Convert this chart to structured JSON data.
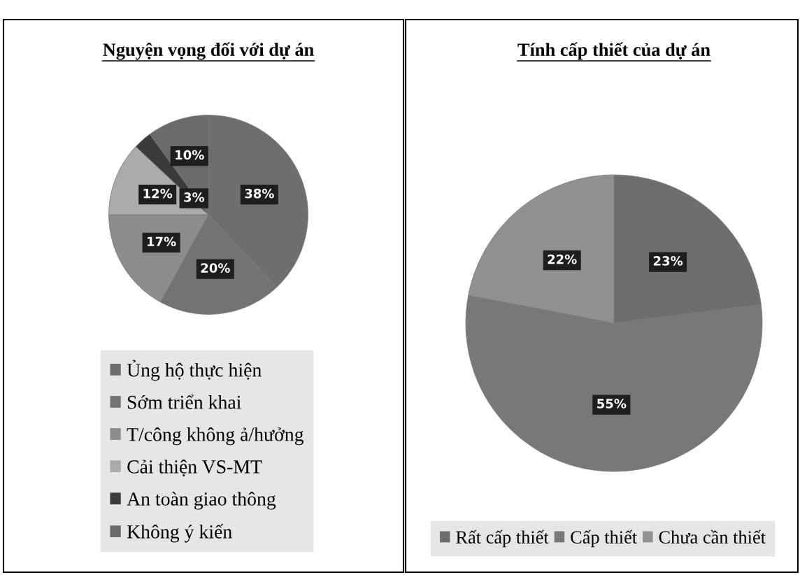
{
  "chart_data": [
    {
      "type": "pie",
      "title": "Nguyện vọng đối với dự án",
      "categories": [
        "Ủng hộ thực hiện",
        "Sớm triển khai",
        "T/công không ả/hưởng",
        "Cải thiện VS-MT",
        "An toàn giao thông",
        "Không ý kiến"
      ],
      "values": [
        38,
        20,
        17,
        12,
        3,
        10
      ],
      "colors": [
        "#6e6e6e",
        "#737373",
        "#8c8c8c",
        "#ababab",
        "#3a3a3a",
        "#6a6a6a"
      ],
      "value_labels": [
        "38%",
        "20%",
        "17%",
        "12%",
        "3%",
        "10%"
      ],
      "legend": "bottom"
    },
    {
      "type": "pie",
      "title": "Tính cấp thiết của dự án",
      "categories": [
        "Rất cấp thiết",
        "Cấp thiết",
        "Chưa cần thiết"
      ],
      "values": [
        23,
        55,
        22
      ],
      "colors": [
        "#6e6e6e",
        "#787878",
        "#909090"
      ],
      "value_labels": [
        "23%",
        "55%",
        "22%"
      ],
      "legend": "bottom"
    }
  ]
}
